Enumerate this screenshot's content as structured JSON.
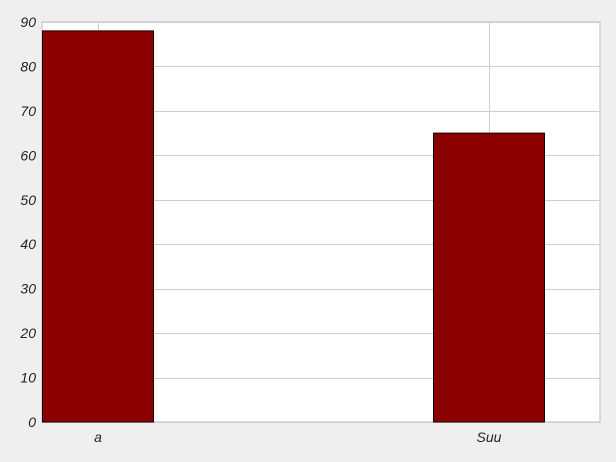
{
  "chart_data": {
    "type": "bar",
    "categories": [
      "a",
      "Suu"
    ],
    "values": [
      88,
      65
    ],
    "title": "",
    "xlabel": "",
    "ylabel": "",
    "ylim": [
      0,
      90
    ],
    "yticks": [
      0,
      10,
      20,
      30,
      40,
      50,
      60,
      70,
      80,
      90
    ],
    "grid": true,
    "colors": {
      "bar_fill": "#8b0000",
      "bar_edge": "#1a0000",
      "plot_background": "#ffffff",
      "figure_background": "#efefef",
      "grid": "#cfcfcf"
    }
  }
}
